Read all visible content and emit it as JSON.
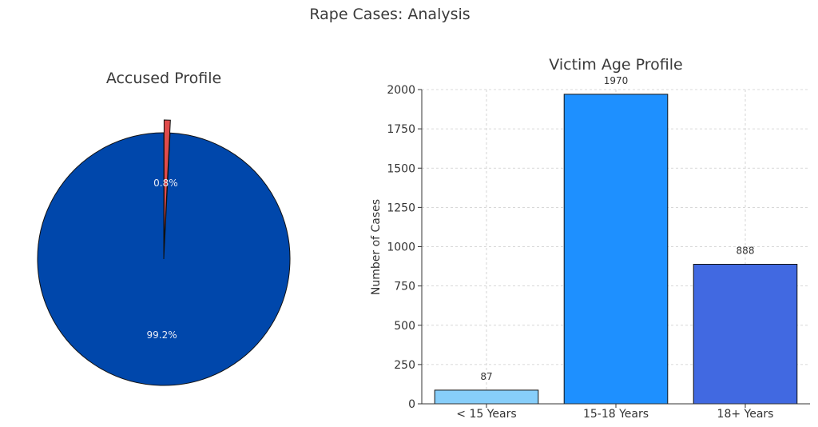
{
  "figure": {
    "title": "Rape Cases: Analysis"
  },
  "chart_data": [
    {
      "type": "pie",
      "title": "Accused Profile",
      "slices": [
        {
          "label": "0.8%",
          "value": 0.8,
          "color": "#e04b4b",
          "exploded": true
        },
        {
          "label": "99.2%",
          "value": 99.2,
          "color": "#0047ab",
          "exploded": false
        }
      ],
      "start_angle_deg": 90,
      "direction": "clockwise"
    },
    {
      "type": "bar",
      "title": "Victim Age Profile",
      "categories": [
        "< 15 Years",
        "15-18 Years",
        "18+ Years"
      ],
      "values": [
        87,
        1970,
        888
      ],
      "value_labels": [
        "87",
        "1970",
        "888"
      ],
      "colors": [
        "#87cefa",
        "#1e90ff",
        "#4169e1"
      ],
      "xlabel": "",
      "ylabel": "Number of Cases",
      "ylim": [
        0,
        2000
      ],
      "yticks": [
        0,
        250,
        500,
        750,
        1000,
        1250,
        1500,
        1750,
        2000
      ],
      "ytick_labels": [
        "0",
        "250",
        "500",
        "750",
        "1000",
        "1250",
        "1500",
        "1750",
        "2000"
      ],
      "grid": true
    }
  ]
}
